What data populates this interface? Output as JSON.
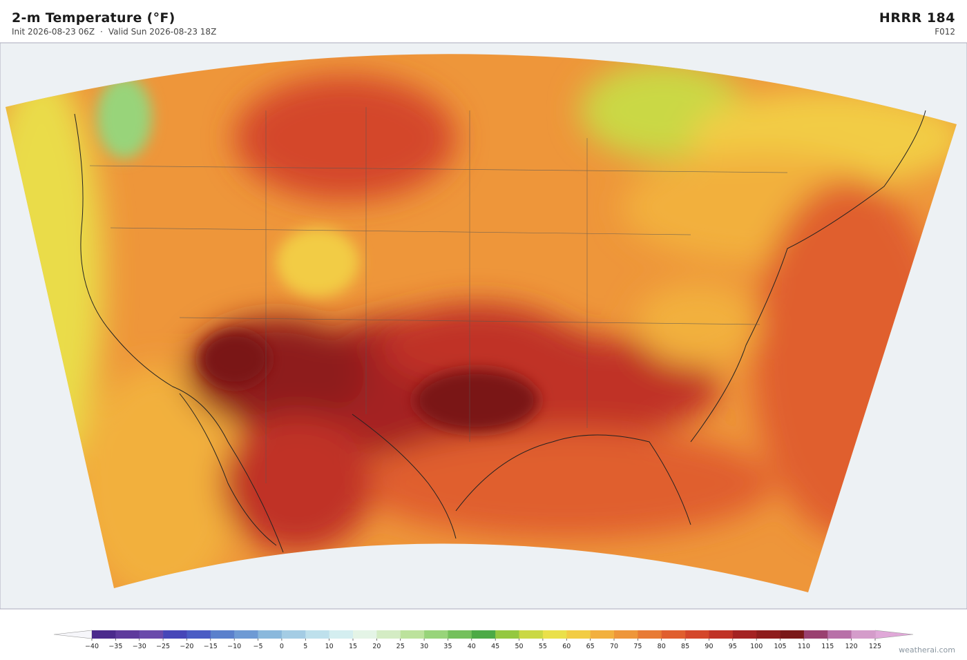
{
  "header": {
    "title": "2-m Temperature  (°F)",
    "init": "Init 2026-08-23 06Z",
    "separator": "·",
    "valid": "Valid Sun 2026-08-23 18Z",
    "model": "HRRR  184",
    "forecast_hour": "F012"
  },
  "colorbar": {
    "ticks": [
      {
        "value": -40,
        "label": "−40"
      },
      {
        "value": -35,
        "label": "−35"
      },
      {
        "value": -30,
        "label": "−30"
      },
      {
        "value": -25,
        "label": "−25"
      },
      {
        "value": -20,
        "label": "−20"
      },
      {
        "value": -15,
        "label": "−15"
      },
      {
        "value": -10,
        "label": "−10"
      },
      {
        "value": -5,
        "label": "−5"
      },
      0,
      5,
      10,
      15,
      20,
      25,
      30,
      35,
      40,
      45,
      50,
      55,
      60,
      65,
      70,
      75,
      80,
      85,
      90,
      95,
      100,
      105,
      110,
      115,
      120,
      125
    ],
    "colors": [
      "#4b2a8c",
      "#5e3a9c",
      "#6a4aab",
      "#4646b8",
      "#4a5cc4",
      "#5a80cc",
      "#6e9ad4",
      "#8ab8dc",
      "#a4cce4",
      "#bee0ec",
      "#d4eef0",
      "#e4f4e6",
      "#d4ecc4",
      "#bce29c",
      "#98d47a",
      "#74c05c",
      "#4caa46",
      "#94c840",
      "#cad844",
      "#eae04a",
      "#f2cc44",
      "#f2b03e",
      "#ee963a",
      "#e87a34",
      "#e05e2e",
      "#d4462a",
      "#c03226",
      "#a42222",
      "#8e1c1c",
      "#7a1818",
      "#9a4070",
      "#b870a8",
      "#d49cca"
    ],
    "under_color": "#f6f6fa",
    "over_color": "#e0a8d8"
  },
  "credit": "weatherai.com"
}
